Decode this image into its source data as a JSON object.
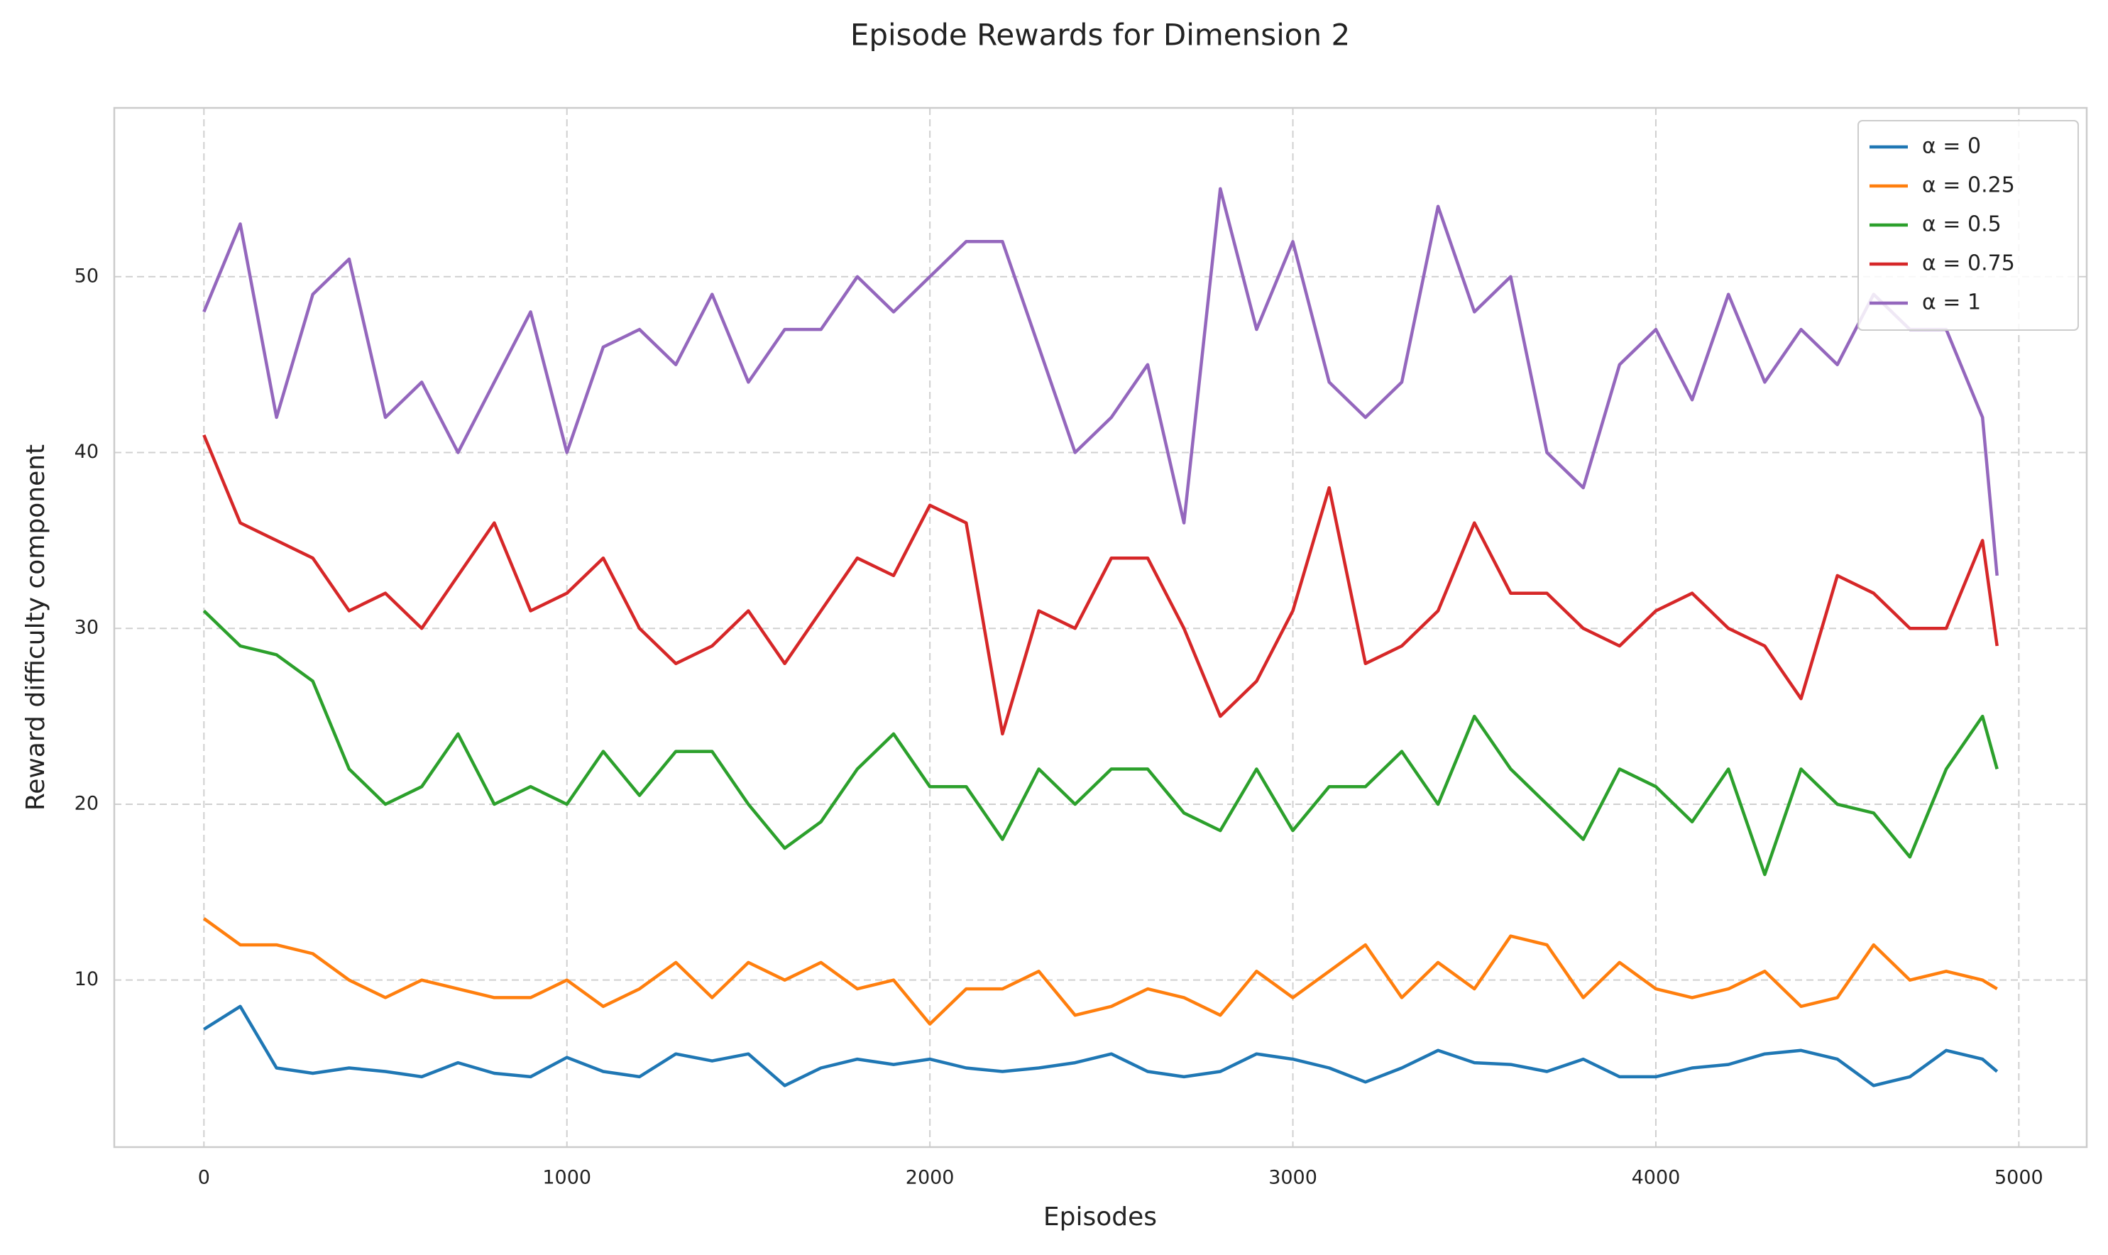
{
  "chart_data": {
    "type": "line",
    "title": "Episode Rewards for Dimension 2",
    "x_label": "Episodes",
    "y_label": "Reward difficulty component",
    "x": [
      0,
      100,
      200,
      300,
      400,
      500,
      600,
      700,
      800,
      900,
      1000,
      1100,
      1200,
      1300,
      1400,
      1500,
      1600,
      1700,
      1800,
      1900,
      2000,
      2100,
      2200,
      2300,
      2400,
      2500,
      2600,
      2700,
      2800,
      2900,
      3000,
      3100,
      3200,
      3300,
      3400,
      3500,
      3600,
      3700,
      3800,
      3900,
      4000,
      4100,
      4200,
      4300,
      4400,
      4500,
      4600,
      4700,
      4800,
      4900,
      4940
    ],
    "series": [
      {
        "name": "α = 0",
        "color": "#1f77b4",
        "values": [
          7.2,
          8.5,
          5,
          4.7,
          5,
          4.8,
          4.5,
          5.3,
          4.7,
          4.5,
          5.6,
          4.8,
          4.5,
          5.8,
          5.4,
          5.8,
          4.0,
          5.0,
          5.5,
          5.2,
          5.5,
          5.0,
          4.8,
          5.0,
          5.3,
          5.8,
          4.8,
          4.5,
          4.8,
          5.8,
          5.5,
          5.0,
          4.2,
          5.0,
          6.0,
          5.3,
          5.2,
          4.8,
          5.5,
          4.5,
          4.5,
          5.0,
          5.2,
          5.8,
          6.0,
          5.5,
          4.0,
          4.5,
          6.0,
          5.5,
          4.8
        ]
      },
      {
        "name": "α = 0.25",
        "color": "#ff7f0e",
        "values": [
          13.5,
          12,
          12,
          11.5,
          10,
          9,
          10,
          9.5,
          9,
          9,
          10,
          8.5,
          9.5,
          11,
          9,
          11,
          10,
          11,
          9.5,
          10,
          7.5,
          9.5,
          9.5,
          10.5,
          8,
          8.5,
          9.5,
          9,
          8,
          10.5,
          9,
          10.5,
          12,
          9,
          11,
          9.5,
          12.5,
          12,
          9,
          11,
          9.5,
          9,
          9.5,
          10.5,
          8.5,
          9,
          12,
          10,
          10.5,
          10,
          9.5
        ]
      },
      {
        "name": "α = 0.5",
        "color": "#2ca02c",
        "values": [
          31,
          29,
          28.5,
          27,
          22,
          20,
          21,
          24,
          20,
          21,
          20,
          23,
          20.5,
          23,
          23,
          20,
          17.5,
          19,
          22,
          24,
          21,
          21,
          18,
          22,
          20,
          22,
          22,
          19.5,
          18.5,
          22,
          18.5,
          21,
          21,
          23,
          20,
          25,
          22,
          20,
          18,
          22,
          21,
          19,
          22,
          16,
          22,
          20,
          19.5,
          17,
          22,
          25,
          22
        ]
      },
      {
        "name": "α = 0.75",
        "color": "#d62728",
        "values": [
          41,
          36,
          35,
          34,
          31,
          32,
          30,
          33,
          36,
          31,
          32,
          34,
          30,
          28,
          29,
          31,
          28,
          31,
          34,
          33,
          37,
          36,
          24,
          31,
          30,
          34,
          34,
          30,
          25,
          27,
          31,
          38,
          28,
          29,
          31,
          36,
          32,
          32,
          30,
          29,
          31,
          32,
          30,
          29,
          26,
          33,
          32,
          30,
          30,
          35,
          29
        ]
      },
      {
        "name": "α = 1",
        "color": "#9467bd",
        "values": [
          48,
          53,
          42,
          49,
          51,
          42,
          44,
          40,
          44,
          48,
          40,
          46,
          47,
          45,
          49,
          44,
          47,
          47,
          50,
          48,
          50,
          52,
          52,
          46,
          40,
          42,
          45,
          36,
          55,
          47,
          52,
          44,
          42,
          44,
          54,
          48,
          50,
          40,
          38,
          45,
          47,
          43,
          49,
          44,
          47,
          45,
          49,
          47,
          47,
          42,
          33
        ]
      }
    ],
    "xlim": [
      -247,
      5187
    ],
    "ylim": [
      0.5,
      59.6
    ],
    "xticks": [
      0,
      1000,
      2000,
      3000,
      4000,
      5000
    ],
    "yticks": [
      10,
      20,
      30,
      40,
      50
    ],
    "grid": true,
    "legend": "upper right"
  }
}
